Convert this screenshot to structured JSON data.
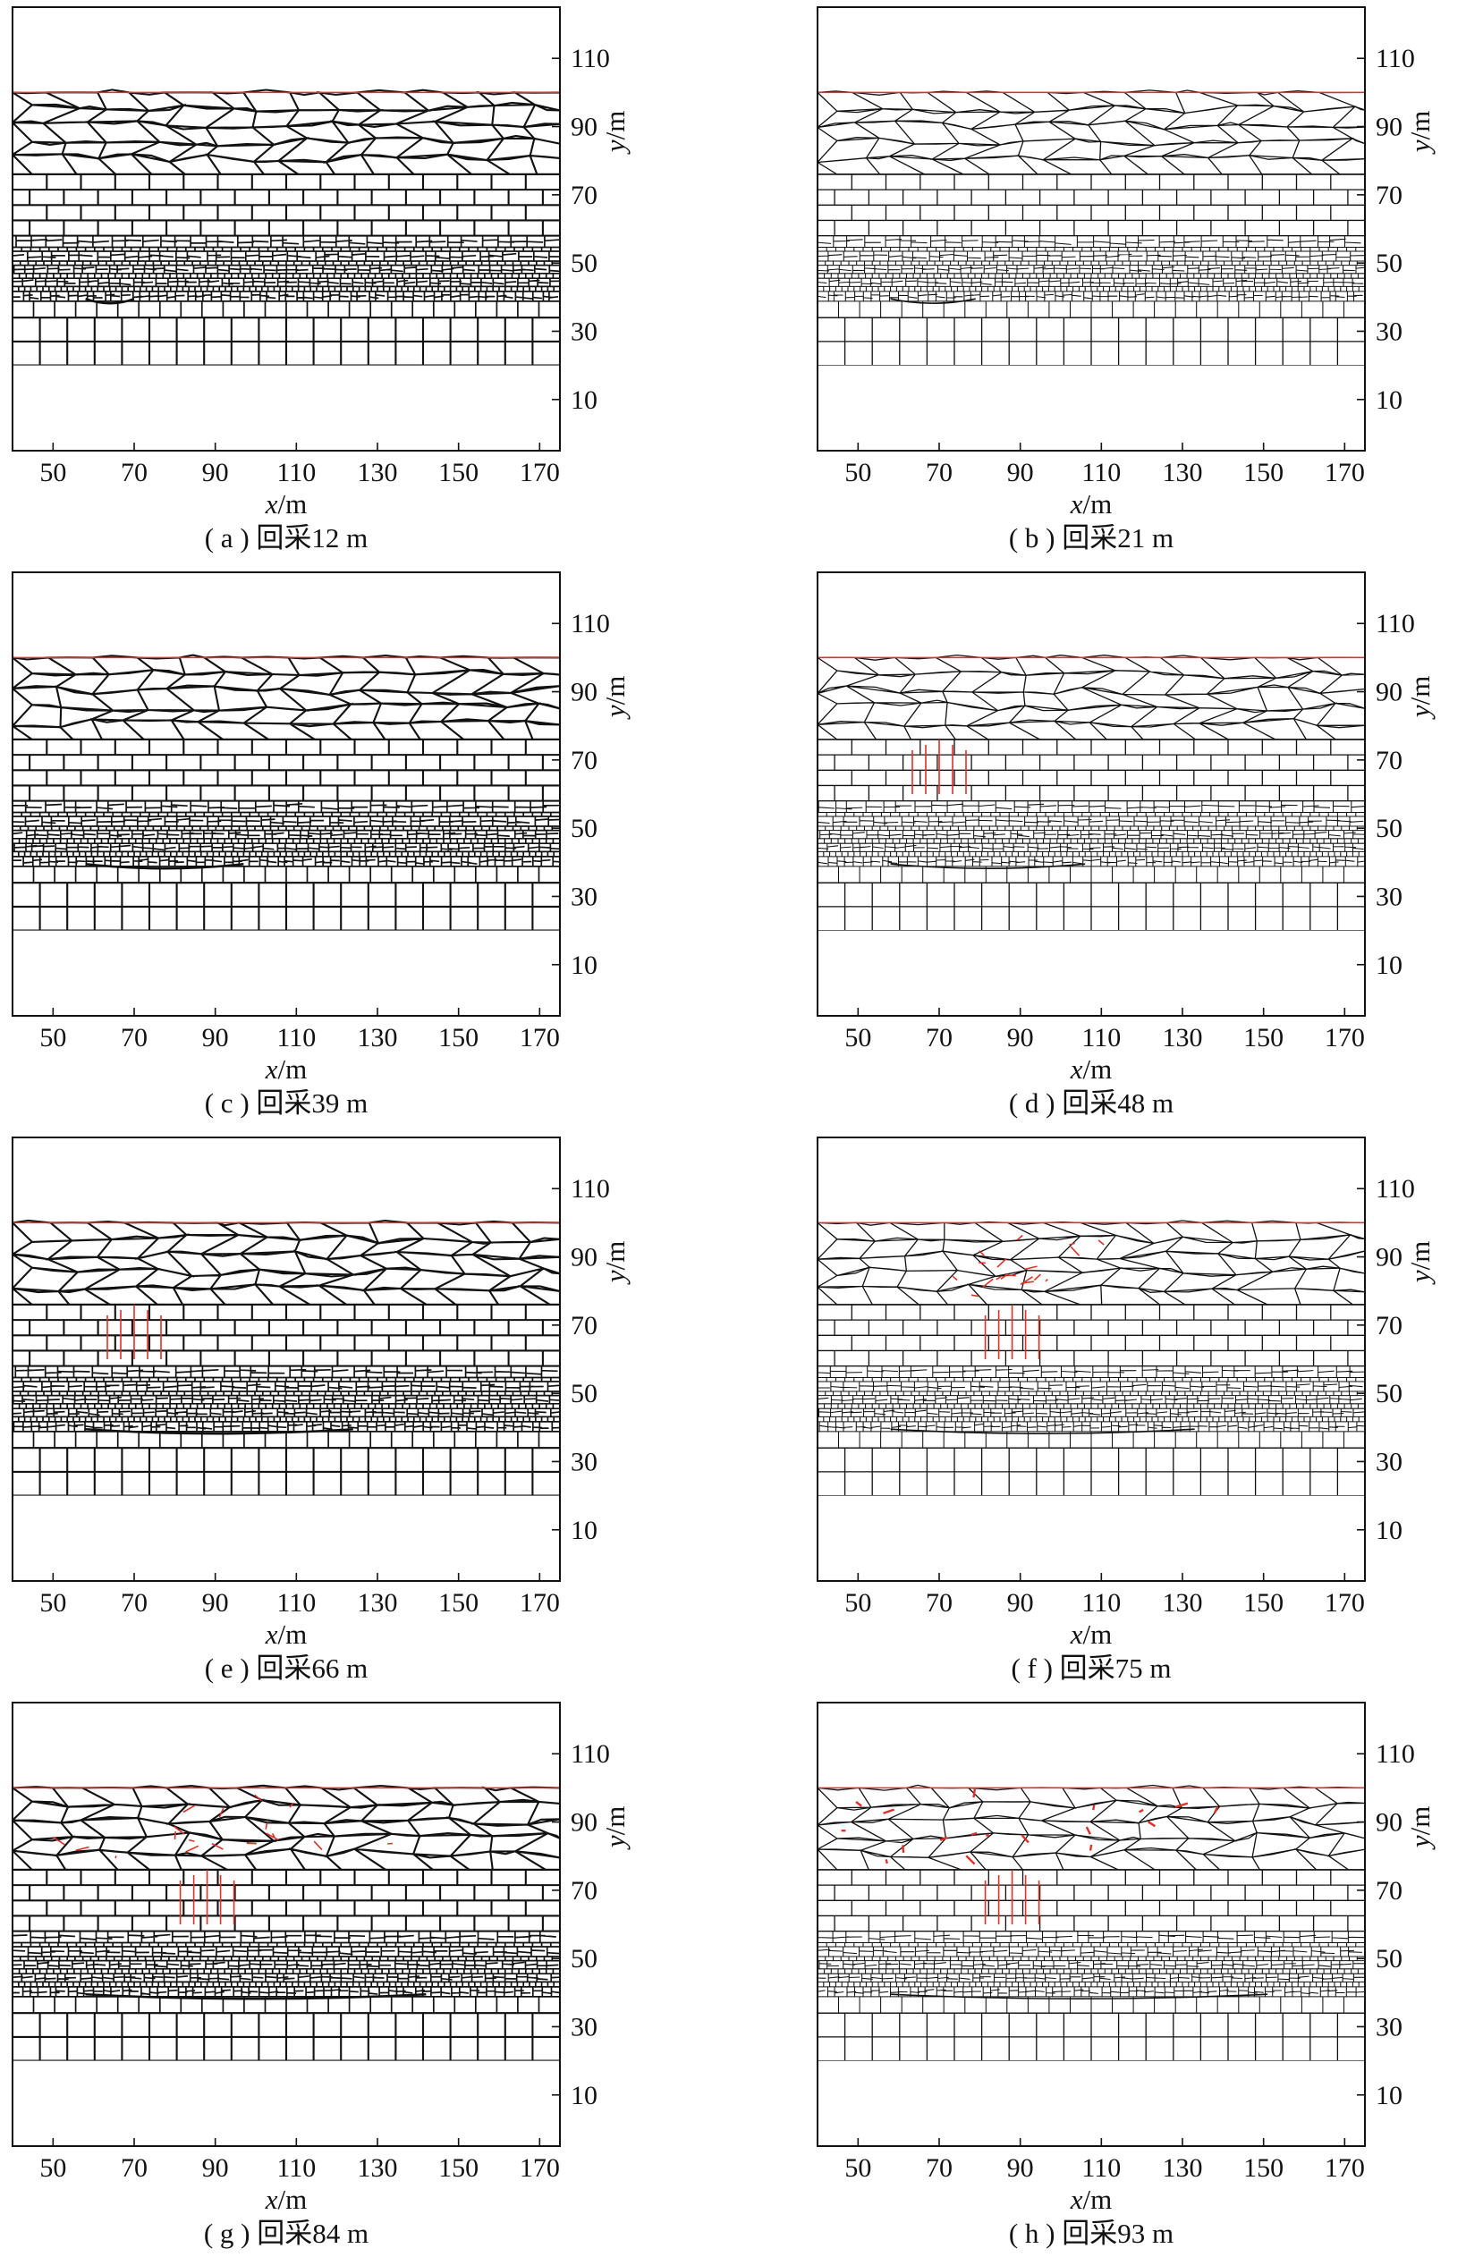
{
  "figure": {
    "x_axis_label": {
      "var": "x",
      "unit": "/m"
    },
    "y_axis_label": {
      "var": "y",
      "unit": "/m"
    },
    "x_range": [
      40,
      175
    ],
    "y_range": [
      -5,
      125
    ],
    "x_ticks": [
      "50",
      "70",
      "90",
      "110",
      "130",
      "150",
      "170"
    ],
    "y_ticks": [
      "10",
      "30",
      "50",
      "70",
      "90",
      "110"
    ],
    "strata_y": {
      "surface": 100,
      "top_block_bottom": 76,
      "brick_layer": [
        58,
        77
      ],
      "fine_layers": [
        34,
        58
      ],
      "foundation": [
        20,
        34
      ]
    },
    "colors": {
      "line": "#111111",
      "fracture": "#e0302a"
    }
  },
  "panels": [
    {
      "caption": "( a ) 回采12 m",
      "mined_m": 12
    },
    {
      "caption": "( b ) 回采21 m",
      "mined_m": 21
    },
    {
      "caption": "( c ) 回采39 m",
      "mined_m": 39
    },
    {
      "caption": "( d ) 回采48 m",
      "mined_m": 48
    },
    {
      "caption": "( e ) 回采66 m",
      "mined_m": 66
    },
    {
      "caption": "( f ) 回采75 m",
      "mined_m": 75
    },
    {
      "caption": "( g ) 回采84 m",
      "mined_m": 84
    },
    {
      "caption": "( h ) 回采93 m",
      "mined_m": 93
    }
  ]
}
